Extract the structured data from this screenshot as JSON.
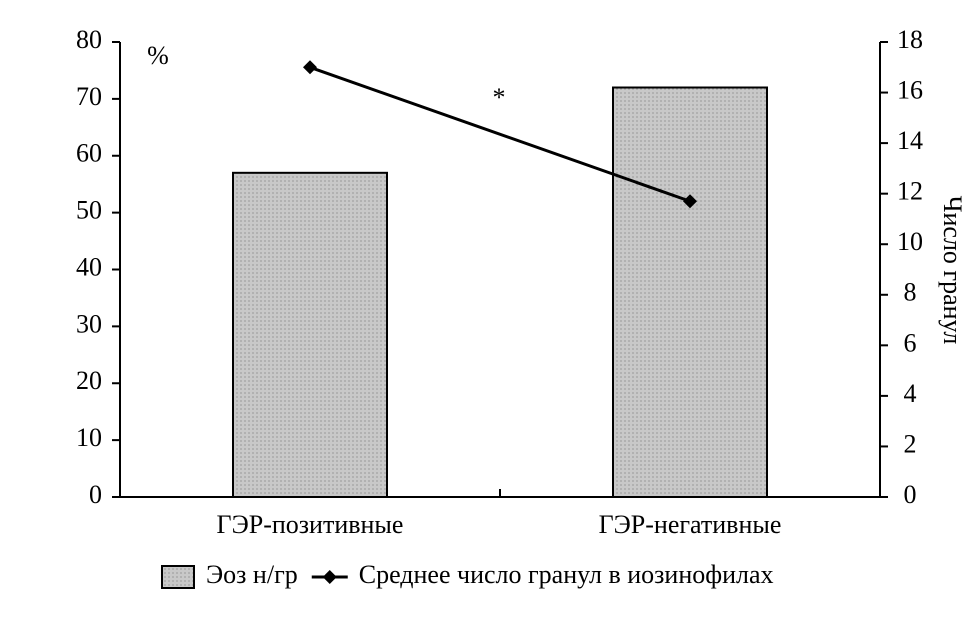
{
  "chart_data": {
    "type": "bar",
    "categories": [
      "ГЭР-позитивные",
      "ГЭР-негативные"
    ],
    "series": [
      {
        "name": "Эоз н/гр",
        "color": "#c8c8c8",
        "values": [
          57,
          72
        ]
      },
      {
        "name": "Среднее число гранул в иозинофилах",
        "color": "#000000",
        "values": [
          17,
          11.7
        ],
        "axis": "y2"
      }
    ],
    "ylim": [
      0,
      80
    ],
    "yticks": [
      0,
      10,
      20,
      30,
      40,
      50,
      60,
      70,
      80
    ],
    "y2lim": [
      0,
      18
    ],
    "y2ticks": [
      0,
      2,
      4,
      6,
      8,
      10,
      12,
      14,
      16,
      18
    ],
    "y_unit_label": "%",
    "y2_label": "Число гранул",
    "annotation": "*",
    "legend": "bottom"
  }
}
